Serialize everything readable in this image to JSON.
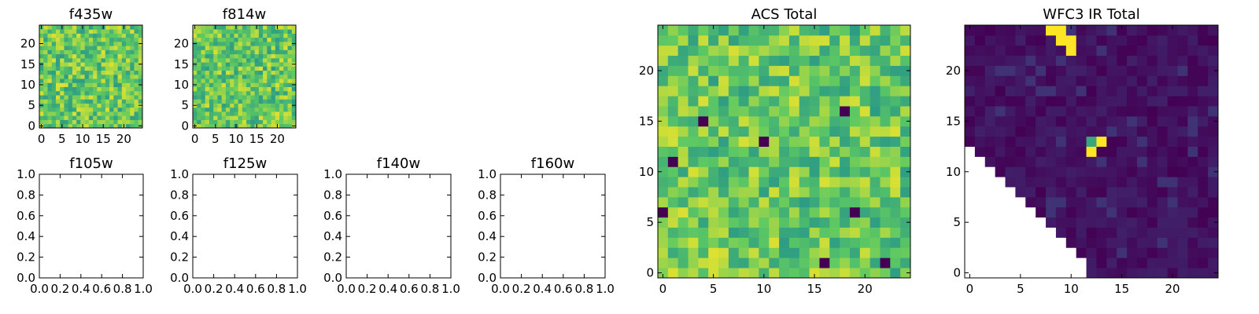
{
  "chart_data": [
    {
      "type": "heatmap",
      "title": "f435w",
      "grid": "25x25",
      "xticks": [
        "0",
        "5",
        "10",
        "15",
        "20"
      ],
      "yticks": [
        "0",
        "5",
        "10",
        "15",
        "20"
      ],
      "xlim": [
        -0.5,
        24.5
      ],
      "ylim": [
        -0.5,
        24.5
      ],
      "colormap": "viridis",
      "seed": 11,
      "dominant_range": [
        0.55,
        0.95
      ]
    },
    {
      "type": "heatmap",
      "title": "f814w",
      "grid": "25x25",
      "xticks": [
        "0",
        "5",
        "10",
        "15",
        "20"
      ],
      "yticks": [
        "0",
        "5",
        "10",
        "15",
        "20"
      ],
      "xlim": [
        -0.5,
        24.5
      ],
      "ylim": [
        -0.5,
        24.5
      ],
      "colormap": "viridis",
      "seed": 23,
      "dominant_range": [
        0.55,
        0.95
      ]
    },
    {
      "type": "empty",
      "title": "f105w",
      "xticks": [
        "0.0",
        "0.2",
        "0.4",
        "0.6",
        "0.8",
        "1.0"
      ],
      "yticks": [
        "0.0",
        "0.2",
        "0.4",
        "0.6",
        "0.8",
        "1.0"
      ],
      "xlim": [
        0,
        1
      ],
      "ylim": [
        0,
        1
      ]
    },
    {
      "type": "empty",
      "title": "f125w",
      "xticks": [
        "0.0",
        "0.2",
        "0.4",
        "0.6",
        "0.8",
        "1.0"
      ],
      "yticks": [
        "0.0",
        "0.2",
        "0.4",
        "0.6",
        "0.8",
        "1.0"
      ],
      "xlim": [
        0,
        1
      ],
      "ylim": [
        0,
        1
      ]
    },
    {
      "type": "empty",
      "title": "f140w",
      "xticks": [
        "0.0",
        "0.2",
        "0.4",
        "0.6",
        "0.8",
        "1.0"
      ],
      "yticks": [
        "0.0",
        "0.2",
        "0.4",
        "0.6",
        "0.8",
        "1.0"
      ],
      "xlim": [
        0,
        1
      ],
      "ylim": [
        0,
        1
      ]
    },
    {
      "type": "empty",
      "title": "f160w",
      "xticks": [
        "0.0",
        "0.2",
        "0.4",
        "0.6",
        "0.8",
        "1.0"
      ],
      "yticks": [
        "0.0",
        "0.2",
        "0.4",
        "0.6",
        "0.8",
        "1.0"
      ],
      "xlim": [
        0,
        1
      ],
      "ylim": [
        0,
        1
      ]
    },
    {
      "type": "heatmap",
      "title": "ACS Total",
      "grid": "25x25",
      "xticks": [
        "0",
        "5",
        "10",
        "15",
        "20"
      ],
      "yticks": [
        "0",
        "5",
        "10",
        "15",
        "20"
      ],
      "xlim": [
        -0.5,
        24.5
      ],
      "ylim": [
        -0.5,
        24.5
      ],
      "colormap": "viridis",
      "seed": 37,
      "dominant_range": [
        0.55,
        0.95
      ],
      "dark_pixels": [
        [
          4,
          15
        ],
        [
          10,
          13
        ],
        [
          18,
          16
        ],
        [
          19,
          6
        ],
        [
          16,
          1
        ],
        [
          22,
          1
        ],
        [
          0,
          6
        ],
        [
          1,
          11
        ]
      ]
    },
    {
      "type": "heatmap",
      "title": "WFC3 IR Total",
      "grid": "25x25",
      "xticks": [
        "0",
        "5",
        "10",
        "15",
        "20"
      ],
      "yticks": [
        "0",
        "5",
        "10",
        "15",
        "20"
      ],
      "xlim": [
        -0.5,
        24.5
      ],
      "ylim": [
        -0.5,
        24.5
      ],
      "colormap": "viridis",
      "seed": 5,
      "dominant_range": [
        0.0,
        0.1
      ],
      "masked_region": "lower-left triangle below the diagonal from (0, 13) to (12, 0)",
      "bright_pixels": [
        [
          8,
          24
        ],
        [
          9,
          24
        ],
        [
          9,
          23
        ],
        [
          10,
          23
        ],
        [
          10,
          22
        ],
        [
          12,
          13
        ],
        [
          12,
          12
        ],
        [
          13,
          13
        ]
      ]
    }
  ]
}
